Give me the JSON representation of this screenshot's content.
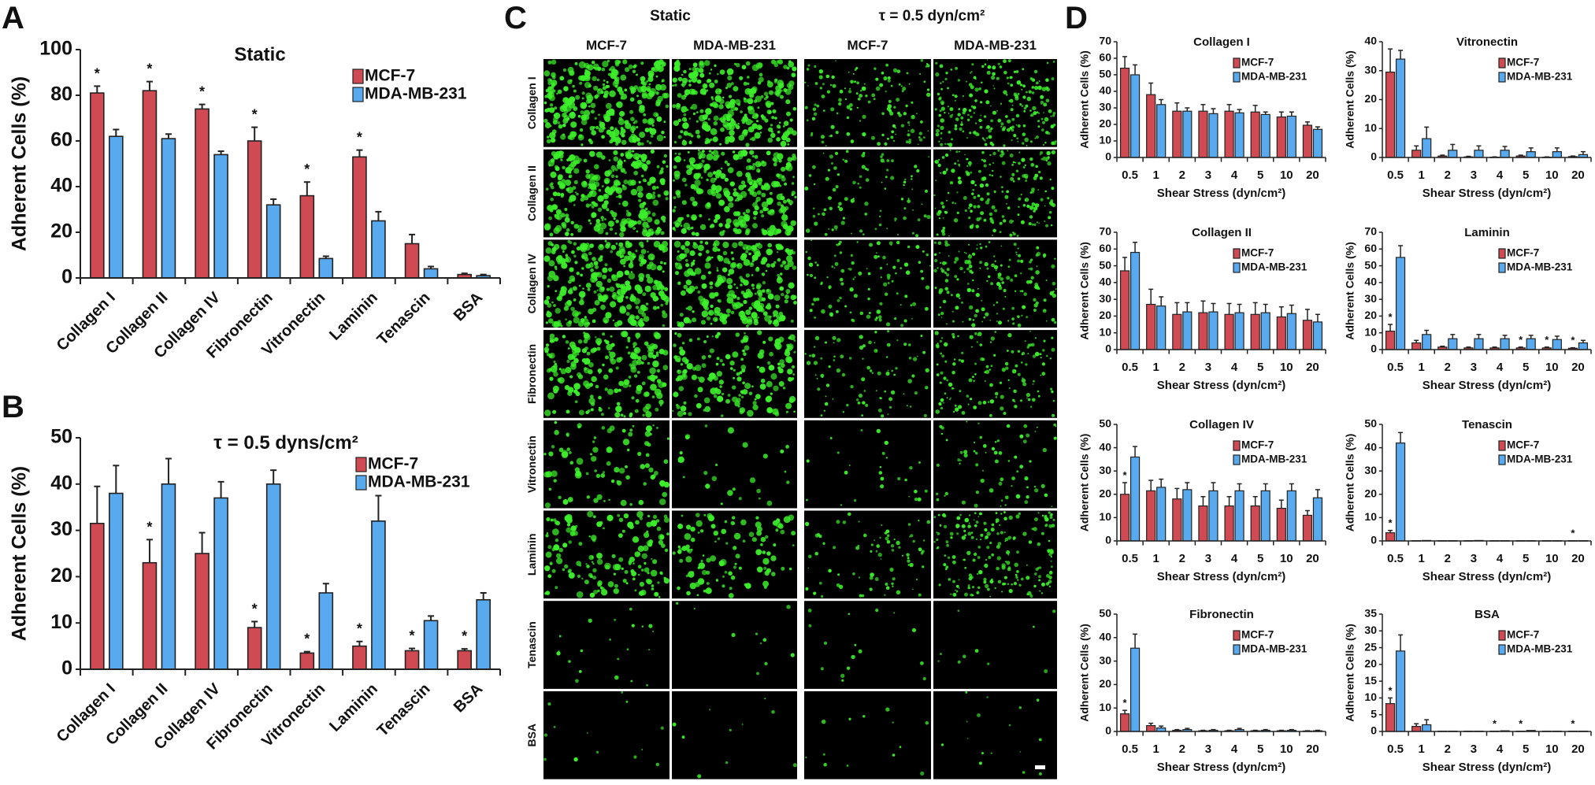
{
  "colors": {
    "mcf7": "#cf4a52",
    "mda": "#58a9ee",
    "cells": "#3cf02a",
    "micrograph_bg": "#000000"
  },
  "star_symbol": "*",
  "panels": {
    "a": "A",
    "b": "B",
    "c": "C",
    "d": "D"
  },
  "micrographs": {
    "group_headers": [
      "Static",
      "τ = 0.5 dyn/cm²"
    ],
    "column_headers": [
      "MCF-7",
      "MDA-MB-231",
      "MCF-7",
      "MDA-MB-231"
    ],
    "row_labels": [
      "Collagen I",
      "Collagen II",
      "Collagen IV",
      "Fibronectin",
      "Vitronectin",
      "Laminin",
      "Tenascin",
      "BSA"
    ]
  },
  "chart_data": [
    {
      "panel": "A",
      "type": "bar",
      "title": "Static",
      "ylabel": "Adherent Cells (%)",
      "xlabel": "",
      "categories": [
        "Collagen I",
        "Collagen II",
        "Collagen IV",
        "Fibronectin",
        "Vitronectin",
        "Laminin",
        "Tenascin",
        "BSA"
      ],
      "ylim": [
        0,
        100
      ],
      "yticks": [
        0,
        20,
        40,
        60,
        80,
        100
      ],
      "legend": "top-right",
      "series": [
        {
          "name": "MCF-7",
          "values": [
            81,
            82,
            74,
            60,
            36,
            53,
            15,
            1.5
          ],
          "errors": [
            3,
            4,
            2,
            6,
            6,
            3,
            4,
            0.5
          ],
          "significant": [
            true,
            true,
            true,
            true,
            true,
            true,
            false,
            false
          ]
        },
        {
          "name": "MDA-MB-231",
          "values": [
            62,
            61,
            54,
            32,
            8.5,
            25,
            4,
            1
          ],
          "errors": [
            3,
            2,
            1.5,
            2.5,
            1,
            4,
            1,
            0.5
          ],
          "significant": [
            false,
            false,
            false,
            false,
            false,
            false,
            false,
            false
          ]
        }
      ]
    },
    {
      "panel": "B",
      "type": "bar",
      "title": "τ = 0.5 dyns/cm²",
      "ylabel": "Adherent Cells (%)",
      "xlabel": "",
      "categories": [
        "Collagen I",
        "Collagen II",
        "Collagen IV",
        "Fibronectin",
        "Vitronectin",
        "Laminin",
        "Tenascin",
        "BSA"
      ],
      "ylim": [
        0,
        50
      ],
      "yticks": [
        0,
        10,
        20,
        30,
        40,
        50
      ],
      "legend": "top-right",
      "series": [
        {
          "name": "MCF-7",
          "values": [
            31.5,
            23,
            25,
            9,
            3.5,
            5,
            4,
            4
          ],
          "errors": [
            8,
            5,
            4.5,
            1.3,
            0.3,
            1,
            0.5,
            0.4
          ],
          "significant": [
            false,
            true,
            false,
            true,
            true,
            true,
            true,
            true
          ]
        },
        {
          "name": "MDA-MB-231",
          "values": [
            38,
            40,
            37,
            40,
            16.5,
            32,
            10.5,
            15
          ],
          "errors": [
            6,
            5.5,
            3.5,
            3,
            2,
            5.5,
            1,
            1.5
          ],
          "significant": [
            false,
            false,
            false,
            false,
            false,
            false,
            false,
            false
          ]
        }
      ]
    },
    {
      "panel": "D",
      "type": "bar",
      "title": "Collagen I",
      "ylabel": "Adherent Cells (%)",
      "xlabel": "Shear Stress (dyn/cm²)",
      "categories": [
        "0.5",
        "1",
        "2",
        "3",
        "4",
        "5",
        "10",
        "20"
      ],
      "ylim": [
        0,
        70
      ],
      "yticks": [
        0,
        10,
        20,
        30,
        40,
        50,
        60,
        70
      ],
      "legend": "top-right",
      "series": [
        {
          "name": "MCF-7",
          "values": [
            54,
            38,
            28,
            28,
            28,
            27.5,
            24.5,
            19.5
          ],
          "errors": [
            7,
            7,
            5,
            4,
            4,
            4,
            3,
            2
          ],
          "significant": [
            false,
            false,
            false,
            false,
            false,
            false,
            false,
            false
          ]
        },
        {
          "name": "MDA-MB-231",
          "values": [
            50,
            32,
            28,
            26.5,
            27,
            26,
            25,
            17
          ],
          "errors": [
            6,
            3,
            2,
            3,
            2,
            1.5,
            2.5,
            1.5
          ],
          "significant": [
            false,
            false,
            false,
            false,
            false,
            false,
            false,
            false
          ]
        }
      ]
    },
    {
      "panel": "D",
      "type": "bar",
      "title": "Vitronectin",
      "ylabel": "Adherent Cells (%)",
      "xlabel": "Shear Stress (dyn/cm²)",
      "categories": [
        "0.5",
        "1",
        "2",
        "3",
        "4",
        "5",
        "10",
        "20"
      ],
      "ylim": [
        0,
        40
      ],
      "yticks": [
        0,
        10,
        20,
        30,
        40
      ],
      "legend": "top-right",
      "series": [
        {
          "name": "MCF-7",
          "values": [
            29.5,
            2.5,
            0.5,
            0.2,
            0.1,
            0.5,
            0.1,
            0.3
          ],
          "errors": [
            8,
            1.5,
            0.3,
            0.2,
            0.1,
            0.3,
            0.1,
            0.2
          ],
          "significant": [
            false,
            false,
            false,
            false,
            false,
            false,
            false,
            false
          ]
        },
        {
          "name": "MDA-MB-231",
          "values": [
            34,
            6.5,
            2.5,
            2.5,
            2.5,
            2,
            2,
            1
          ],
          "errors": [
            3,
            4,
            2,
            1.5,
            1.3,
            1.3,
            1.3,
            1
          ],
          "significant": [
            false,
            false,
            false,
            false,
            false,
            false,
            false,
            false
          ]
        }
      ]
    },
    {
      "panel": "D",
      "type": "bar",
      "title": "Collagen II",
      "ylabel": "Adherent Cells (%)",
      "xlabel": "Shear Stress (dyn/cm²)",
      "categories": [
        "0.5",
        "1",
        "2",
        "3",
        "4",
        "5",
        "10",
        "20"
      ],
      "ylim": [
        0,
        70
      ],
      "yticks": [
        0,
        10,
        20,
        30,
        40,
        50,
        60,
        70
      ],
      "legend": "top-right",
      "series": [
        {
          "name": "MCF-7",
          "values": [
            47,
            27,
            21,
            22,
            21,
            21,
            19.5,
            17.5
          ],
          "errors": [
            8,
            9,
            7,
            7,
            6.5,
            7,
            6,
            6.5
          ],
          "significant": [
            false,
            false,
            false,
            false,
            false,
            false,
            false,
            false
          ]
        },
        {
          "name": "MDA-MB-231",
          "values": [
            58,
            26,
            22.5,
            22.5,
            22,
            22,
            21.5,
            16.5
          ],
          "errors": [
            6,
            5.5,
            5.5,
            5,
            5,
            5,
            5,
            4.5
          ],
          "significant": [
            false,
            false,
            false,
            false,
            false,
            false,
            false,
            false
          ]
        }
      ]
    },
    {
      "panel": "D",
      "type": "bar",
      "title": "Laminin",
      "ylabel": "Adherent Cells (%)",
      "xlabel": "Shear Stress (dyn/cm²)",
      "categories": [
        "0.5",
        "1",
        "2",
        "3",
        "4",
        "5",
        "10",
        "20"
      ],
      "ylim": [
        0,
        70
      ],
      "yticks": [
        0,
        10,
        20,
        30,
        40,
        50,
        60,
        70
      ],
      "legend": "top-right",
      "series": [
        {
          "name": "MCF-7",
          "values": [
            11,
            4,
            1.5,
            1,
            1,
            1,
            1,
            0.8
          ],
          "errors": [
            4,
            1.5,
            0.5,
            0.5,
            0.5,
            0.5,
            0.5,
            0.3
          ],
          "significant": [
            true,
            false,
            false,
            false,
            false,
            true,
            true,
            true
          ]
        },
        {
          "name": "MDA-MB-231",
          "values": [
            55,
            9,
            6.5,
            6.5,
            6.5,
            6.5,
            6,
            4
          ],
          "errors": [
            7,
            2.5,
            2.5,
            2.5,
            2,
            2,
            2,
            1.5
          ],
          "significant": [
            false,
            false,
            false,
            false,
            false,
            false,
            false,
            false
          ]
        }
      ]
    },
    {
      "panel": "D",
      "type": "bar",
      "title": "Collagen IV",
      "ylabel": "Adherent Cells (%)",
      "xlabel": "Shear Stress (dyn/cm²)",
      "categories": [
        "0.5",
        "1",
        "2",
        "3",
        "4",
        "5",
        "10",
        "20"
      ],
      "ylim": [
        0,
        50
      ],
      "yticks": [
        0,
        10,
        20,
        30,
        40,
        50
      ],
      "legend": "top-right",
      "series": [
        {
          "name": "MCF-7",
          "values": [
            20,
            21.5,
            18,
            15,
            15,
            15,
            14,
            11
          ],
          "errors": [
            5,
            4.5,
            4.5,
            4,
            4,
            4,
            3.5,
            2
          ],
          "significant": [
            true,
            false,
            false,
            false,
            false,
            false,
            false,
            false
          ]
        },
        {
          "name": "MDA-MB-231",
          "values": [
            36,
            23,
            22,
            21.5,
            21.5,
            21.5,
            21.5,
            18.5
          ],
          "errors": [
            4.5,
            3.5,
            3,
            3.5,
            3,
            3,
            3,
            3.5
          ],
          "significant": [
            false,
            false,
            false,
            false,
            false,
            false,
            false,
            false
          ]
        }
      ]
    },
    {
      "panel": "D",
      "type": "bar",
      "title": "Tenascin",
      "ylabel": "Adherent Cells (%)",
      "xlabel": "Shear Stress (dyn/cm²)",
      "categories": [
        "0.5",
        "1",
        "2",
        "3",
        "4",
        "5",
        "10",
        "20"
      ],
      "ylim": [
        0,
        50
      ],
      "yticks": [
        0,
        10,
        20,
        30,
        40,
        50
      ],
      "legend": "top-right",
      "series": [
        {
          "name": "MCF-7",
          "values": [
            3.5,
            0.1,
            0.1,
            0.1,
            0.1,
            0.1,
            0.1,
            0.1
          ],
          "errors": [
            1,
            0,
            0,
            0,
            0,
            0,
            0,
            0
          ],
          "significant": [
            true,
            false,
            false,
            false,
            false,
            false,
            false,
            true
          ]
        },
        {
          "name": "MDA-MB-231",
          "values": [
            42,
            0.2,
            0.1,
            0.2,
            0.1,
            0.1,
            0.1,
            0.1
          ],
          "errors": [
            4.5,
            0,
            0,
            0,
            0,
            0,
            0,
            0
          ],
          "significant": [
            false,
            false,
            false,
            false,
            false,
            false,
            false,
            false
          ]
        }
      ]
    },
    {
      "panel": "D",
      "type": "bar",
      "title": "Fibronectin",
      "ylabel": "Adherent Cells (%)",
      "xlabel": "Shear Stress (dyn/cm²)",
      "categories": [
        "0.5",
        "1",
        "2",
        "3",
        "4",
        "5",
        "10",
        "20"
      ],
      "ylim": [
        0,
        50
      ],
      "yticks": [
        0,
        10,
        20,
        30,
        40,
        50
      ],
      "legend": "top-right",
      "series": [
        {
          "name": "MCF-7",
          "values": [
            7.5,
            2.5,
            0.5,
            0.3,
            0.3,
            0.3,
            0.3,
            0.2
          ],
          "errors": [
            1.5,
            1,
            0.3,
            0.2,
            0.2,
            0.2,
            0.2,
            0.1
          ],
          "significant": [
            true,
            false,
            false,
            false,
            false,
            false,
            false,
            false
          ]
        },
        {
          "name": "MDA-MB-231",
          "values": [
            35.5,
            1.5,
            0.8,
            0.5,
            0.8,
            0.5,
            0.5,
            0.3
          ],
          "errors": [
            6,
            0.8,
            0.5,
            0.3,
            0.5,
            0.3,
            0.3,
            0.2
          ],
          "significant": [
            false,
            false,
            false,
            false,
            false,
            false,
            false,
            false
          ]
        }
      ]
    },
    {
      "panel": "D",
      "type": "bar",
      "title": "BSA",
      "ylabel": "Adherent Cells (%)",
      "xlabel": "Shear Stress (dyn/cm²)",
      "categories": [
        "0.5",
        "1",
        "2",
        "3",
        "4",
        "5",
        "10",
        "20"
      ],
      "ylim": [
        0,
        35
      ],
      "yticks": [
        0,
        5,
        10,
        15,
        20,
        25,
        30,
        35
      ],
      "legend": "top-right",
      "series": [
        {
          "name": "MCF-7",
          "values": [
            8.3,
            1.5,
            0.1,
            0.1,
            0.1,
            0.1,
            0.1,
            0.1
          ],
          "errors": [
            1.7,
            0.8,
            0,
            0,
            0,
            0,
            0,
            0
          ],
          "significant": [
            true,
            false,
            false,
            false,
            true,
            true,
            false,
            true
          ]
        },
        {
          "name": "MDA-MB-231",
          "values": [
            24,
            2,
            0.1,
            0.1,
            0.2,
            0.3,
            0.1,
            0.1
          ],
          "errors": [
            4.8,
            1.5,
            0,
            0,
            0,
            0,
            0,
            0
          ],
          "significant": [
            false,
            false,
            false,
            false,
            false,
            false,
            false,
            false
          ]
        }
      ]
    }
  ]
}
